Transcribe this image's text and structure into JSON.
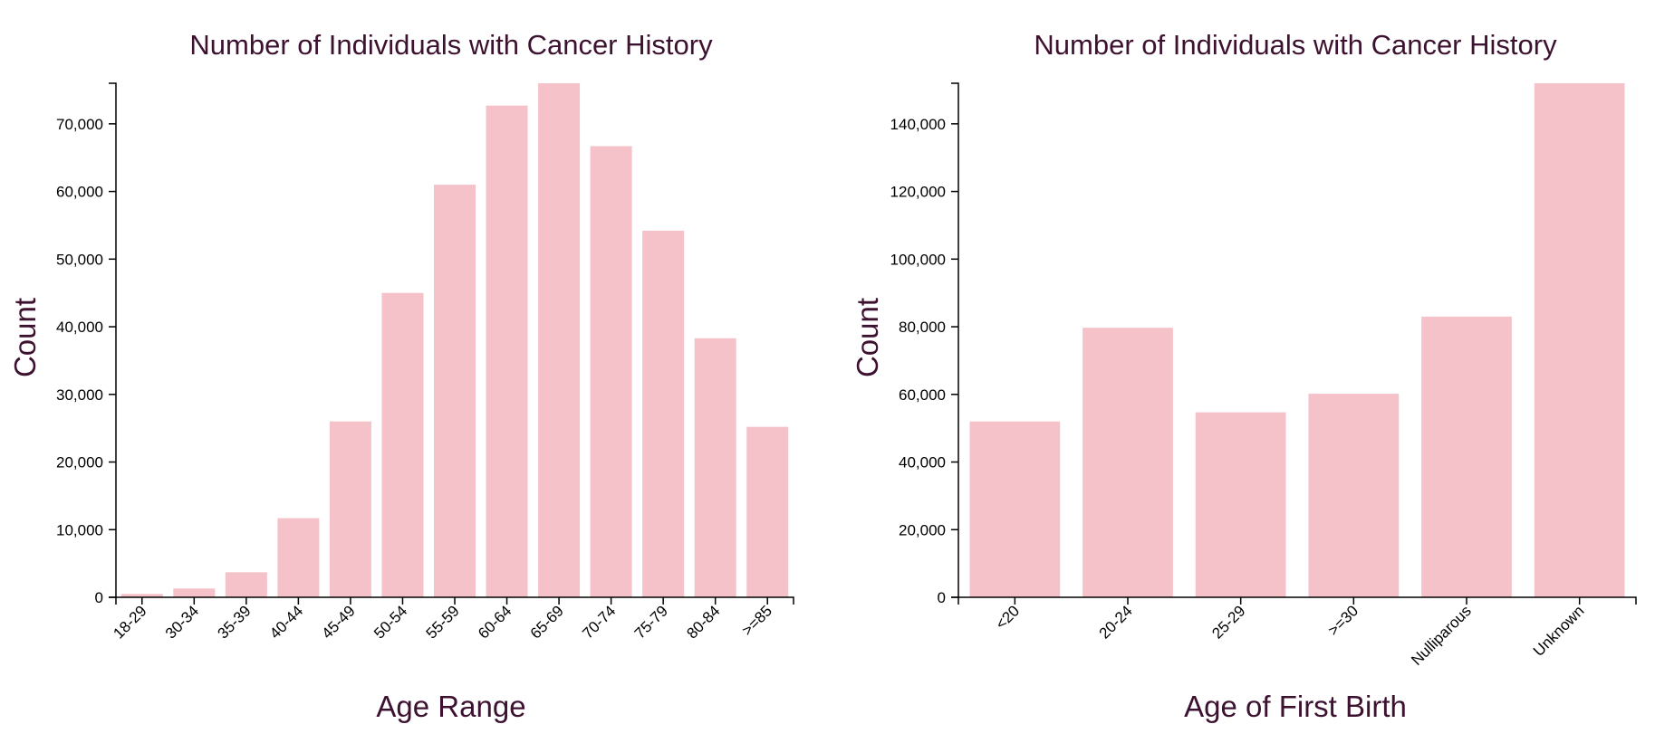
{
  "colors": {
    "bar": "#f5c2ca",
    "title": "#3d1230",
    "axis": "#000000"
  },
  "chart_data": [
    {
      "type": "bar",
      "title": "Number of Individuals with Cancer History",
      "xlabel": "Age Range",
      "ylabel": "Count",
      "categories": [
        "18-29",
        "30-34",
        "35-39",
        "40-44",
        "45-49",
        "50-54",
        "55-59",
        "60-64",
        "65-69",
        "70-74",
        "75-79",
        "80-84",
        ">=85"
      ],
      "values": [
        500,
        1300,
        3700,
        11700,
        26000,
        45000,
        61000,
        72700,
        76000,
        66700,
        54200,
        38300,
        25200
      ],
      "ylim": [
        0,
        76000
      ],
      "yticks": [
        0,
        10000,
        20000,
        30000,
        40000,
        50000,
        60000,
        70000
      ],
      "ytick_labels": [
        "0",
        "10,000",
        "20,000",
        "30,000",
        "40,000",
        "50,000",
        "60,000",
        "70,000"
      ],
      "grid": false,
      "legend": "none"
    },
    {
      "type": "bar",
      "title": "Number of Individuals with Cancer History",
      "xlabel": "Age of First Birth",
      "ylabel": "Count",
      "categories": [
        "<20",
        "20-24",
        "25-29",
        ">=30",
        "Nulliparous",
        "Unknown"
      ],
      "values": [
        52000,
        79700,
        54700,
        60200,
        83000,
        152000
      ],
      "ylim": [
        0,
        152000
      ],
      "yticks": [
        0,
        20000,
        40000,
        60000,
        80000,
        100000,
        120000,
        140000
      ],
      "ytick_labels": [
        "0",
        "20,000",
        "40,000",
        "60,000",
        "80,000",
        "100,000",
        "120,000",
        "140,000"
      ],
      "grid": false,
      "legend": "none"
    }
  ]
}
